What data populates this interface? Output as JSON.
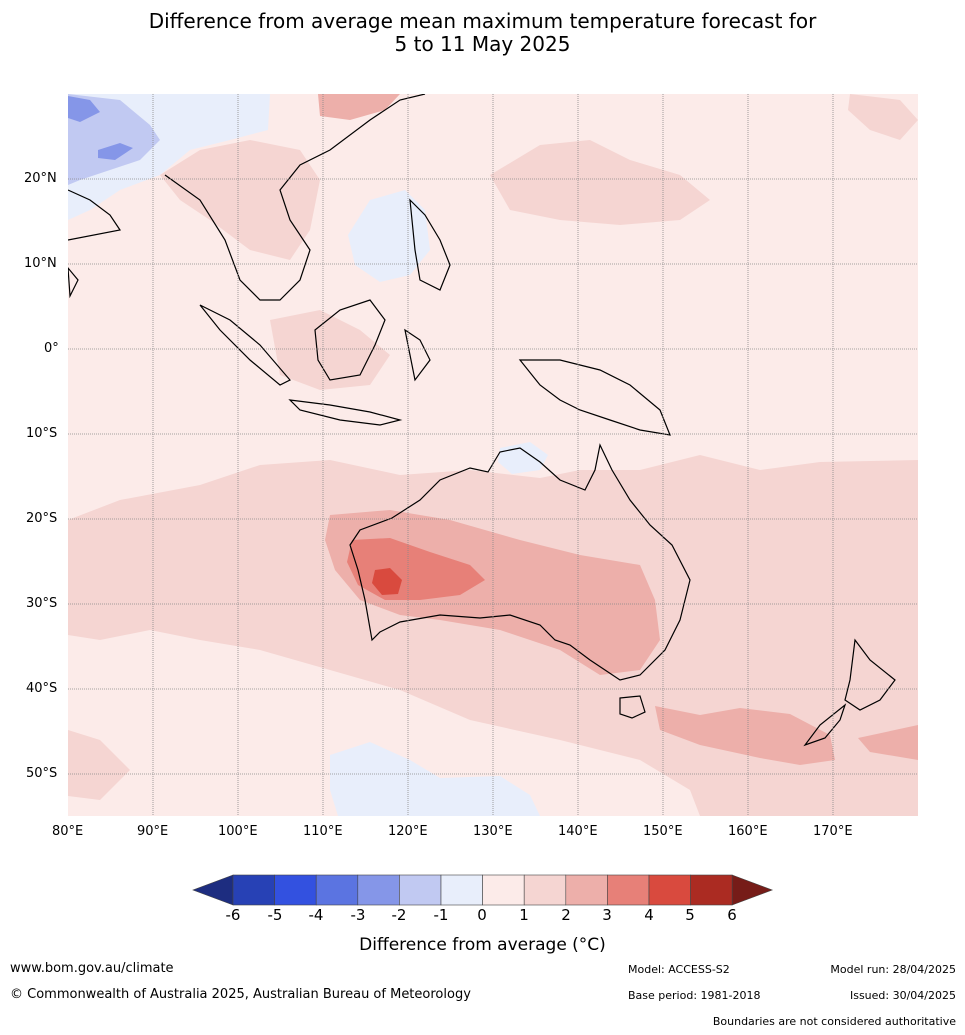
{
  "title": {
    "line1": "Difference from average mean maximum temperature forecast for",
    "line2": "5 to 11 May 2025"
  },
  "map": {
    "lat_labels": [
      "20°N",
      "10°N",
      "0°",
      "10°S",
      "20°S",
      "30°S",
      "40°S",
      "50°S"
    ],
    "lon_labels": [
      "80°E",
      "90°E",
      "100°E",
      "110°E",
      "120°E",
      "130°E",
      "140°E",
      "150°E",
      "160°E",
      "170°E"
    ],
    "colors": {
      "ocean_base": "#fcebe9",
      "cool_light": "#e8eefb",
      "cool_mid": "#c1c9f2",
      "cool_strong": "#8596e8",
      "cool_deep": "#5b74e1",
      "warm_1_2": "#f5d5d2",
      "warm_2_3": "#edafaa",
      "warm_3_4": "#e78078",
      "warm_4_5": "#d94a3e",
      "coast": "#000000",
      "grid": "#888888"
    }
  },
  "colorbar": {
    "ticks": [
      "-6",
      "-5",
      "-4",
      "-3",
      "-2",
      "-1",
      "0",
      "1",
      "2",
      "3",
      "4",
      "5",
      "6"
    ],
    "colors": [
      "#1d2d80",
      "#2741b5",
      "#3351e0",
      "#5b74e1",
      "#8596e8",
      "#c1c9f2",
      "#e8eefb",
      "#fcebe9",
      "#f5d5d2",
      "#edafaa",
      "#e78078",
      "#d94a3e",
      "#ab2b22",
      "#761c18"
    ],
    "title": "Difference from average (°C)"
  },
  "footer": {
    "website": "www.bom.gov.au/climate",
    "copyright": "© Commonwealth of Australia 2025, Australian Bureau of Meteorology",
    "model": "Model: ACCESS-S2",
    "base_period": "Base period: 1981-2018",
    "model_run": "Model run: 28/04/2025",
    "issued": "Issued: 30/04/2025",
    "disclaimer": "Boundaries are not considered authoritative"
  }
}
